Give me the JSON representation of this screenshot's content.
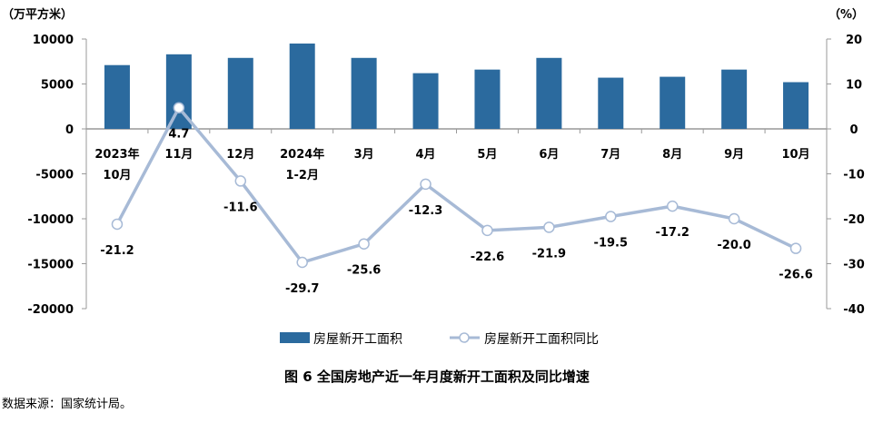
{
  "chart_data": {
    "type": "bar+line",
    "title": "图 6   全国房地产近一年月度新开工面积及同比增速",
    "source": "数据来源：国家统计局。",
    "left_unit": "（万平方米）",
    "right_unit": "（%）",
    "categories": [
      [
        "2023年",
        "10月"
      ],
      [
        "11月"
      ],
      [
        "12月"
      ],
      [
        "2024年",
        "1-2月"
      ],
      [
        "3月"
      ],
      [
        "4月"
      ],
      [
        "5月"
      ],
      [
        "6月"
      ],
      [
        "7月"
      ],
      [
        "8月"
      ],
      [
        "9月"
      ],
      [
        "10月"
      ]
    ],
    "left_axis": {
      "ylim": [
        -20000,
        10000
      ],
      "ticks": [
        10000,
        5000,
        0,
        -5000,
        -10000,
        -15000,
        -20000
      ]
    },
    "right_axis": {
      "ylim": [
        -40,
        20
      ],
      "ticks": [
        20,
        10,
        0,
        -10,
        -20,
        -30,
        -40
      ]
    },
    "series": [
      {
        "name": "房屋新开工面积",
        "type": "bar",
        "axis": "left",
        "color": "#2B6A9E",
        "values": [
          7100,
          8300,
          7900,
          9500,
          7900,
          6200,
          6600,
          7900,
          5700,
          5800,
          6600,
          5200
        ]
      },
      {
        "name": "房屋新开工面积同比",
        "type": "line",
        "axis": "right",
        "color": "#A7BAD6",
        "values": [
          -21.2,
          4.7,
          -11.6,
          -29.7,
          -25.6,
          -12.3,
          -22.6,
          -21.9,
          -19.5,
          -17.2,
          -20.0,
          -26.6
        ],
        "labels": [
          "-21.2",
          "4.7",
          "-11.6",
          "-29.7",
          "-25.6",
          "-12.3",
          "-22.6",
          "-21.9",
          "-19.5",
          "-17.2",
          "-20.0",
          "-26.6"
        ]
      }
    ],
    "grid": false,
    "legend_position": "bottom"
  }
}
